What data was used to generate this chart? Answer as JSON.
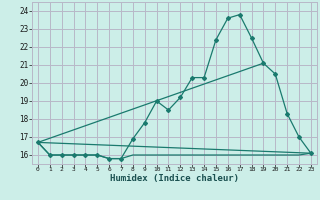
{
  "xlabel": "Humidex (Indice chaleur)",
  "bg_color": "#cceee8",
  "line_color": "#1a7a6e",
  "grid_color": "#b8b8c8",
  "xlim": [
    -0.5,
    23.5
  ],
  "ylim": [
    15.5,
    24.5
  ],
  "yticks": [
    16,
    17,
    18,
    19,
    20,
    21,
    22,
    23,
    24
  ],
  "xticks": [
    0,
    1,
    2,
    3,
    4,
    5,
    6,
    7,
    8,
    9,
    10,
    11,
    12,
    13,
    14,
    15,
    16,
    17,
    18,
    19,
    20,
    21,
    22,
    23
  ],
  "series1": [
    16.7,
    16.0,
    16.0,
    16.0,
    16.0,
    16.0,
    15.8,
    15.8,
    16.9,
    17.8,
    19.0,
    18.5,
    19.2,
    20.3,
    20.3,
    22.4,
    23.6,
    23.8,
    22.5,
    21.1,
    20.5,
    18.3,
    17.0,
    16.1
  ],
  "series2": [
    16.7,
    16.0,
    16.0,
    16.0,
    16.0,
    16.0,
    15.8,
    15.8,
    16.0,
    16.0,
    16.0,
    16.0,
    16.0,
    16.0,
    16.0,
    16.0,
    16.0,
    16.0,
    16.0,
    16.0,
    16.0,
    16.0,
    16.0,
    16.1
  ],
  "trend_x": [
    0,
    23
  ],
  "trend_y": [
    16.7,
    16.1
  ],
  "trend2_x": [
    0,
    19
  ],
  "trend2_y": [
    16.7,
    21.1
  ]
}
